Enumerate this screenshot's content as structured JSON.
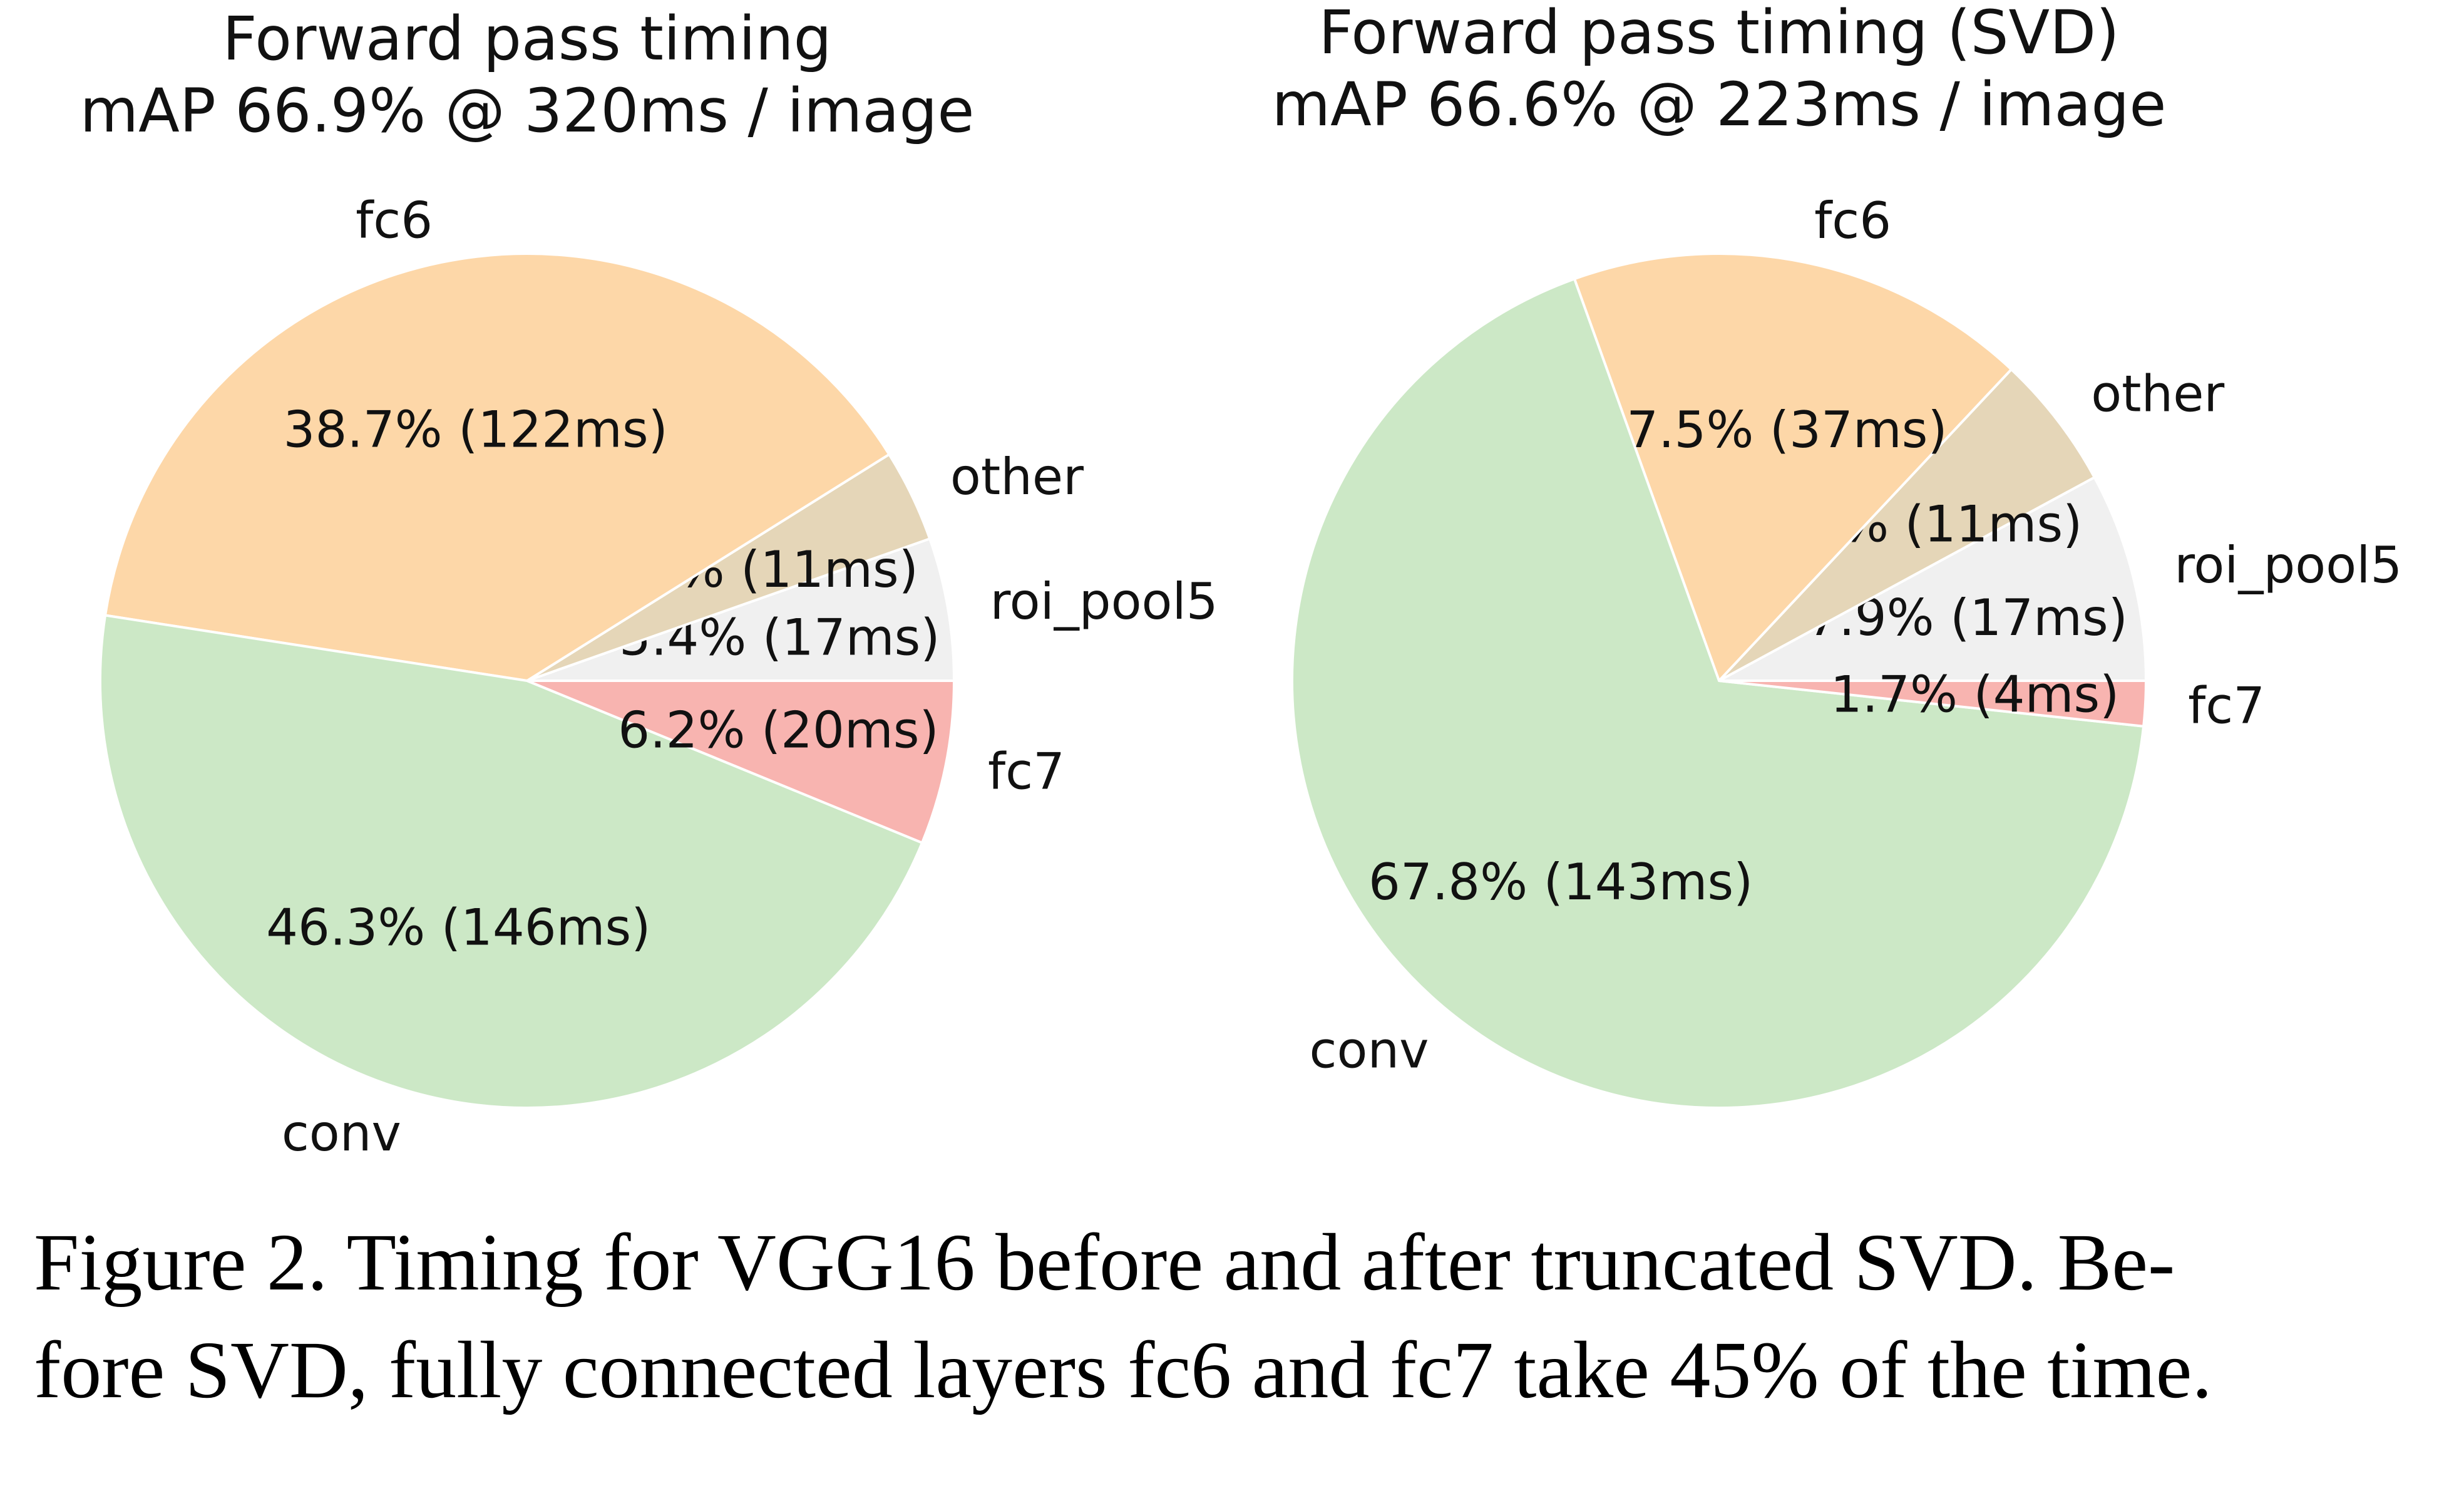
{
  "chart_data": [
    {
      "type": "pie",
      "title": "Forward pass timing",
      "subtitle": "mAP 66.9% @ 320ms / image",
      "slices": [
        {
          "label": "roi_pool5",
          "percent": 5.4,
          "ms": 17,
          "value_label": "5.4% (17ms)",
          "color": "#f0f0f0"
        },
        {
          "label": "other",
          "percent": 3.5,
          "ms": 11,
          "value_label": "3.5% (11ms)",
          "color": "#e5d6b8"
        },
        {
          "label": "fc6",
          "percent": 38.7,
          "ms": 122,
          "value_label": "38.7% (122ms)",
          "color": "#fdd7a8"
        },
        {
          "label": "conv",
          "percent": 46.3,
          "ms": 146,
          "value_label": "46.3% (146ms)",
          "color": "#cce8c6"
        },
        {
          "label": "fc7",
          "percent": 6.2,
          "ms": 20,
          "value_label": "6.2% (20ms)",
          "color": "#f8b4b0"
        }
      ]
    },
    {
      "type": "pie",
      "title": "Forward pass timing (SVD)",
      "subtitle": "mAP 66.6% @ 223ms / image",
      "slices": [
        {
          "label": "roi_pool5",
          "percent": 7.9,
          "ms": 17,
          "value_label": "7.9% (17ms)",
          "color": "#f0f0f0"
        },
        {
          "label": "other",
          "percent": 5.1,
          "ms": 11,
          "value_label": "5.1% (11ms)",
          "color": "#e5d6b8"
        },
        {
          "label": "fc6",
          "percent": 17.5,
          "ms": 37,
          "value_label": "17.5% (37ms)",
          "color": "#fdd7a8"
        },
        {
          "label": "conv",
          "percent": 67.8,
          "ms": 143,
          "value_label": "67.8% (143ms)",
          "color": "#cce8c6"
        },
        {
          "label": "fc7",
          "percent": 1.7,
          "ms": 4,
          "value_label": "1.7% (4ms)",
          "color": "#f8b4b0"
        }
      ]
    }
  ],
  "caption": {
    "line1": "Figure 2. Timing for VGG16 before and after truncated SVD. Be-",
    "line2": "fore SVD, fully connected layers fc6 and fc7 take 45% of the time."
  }
}
